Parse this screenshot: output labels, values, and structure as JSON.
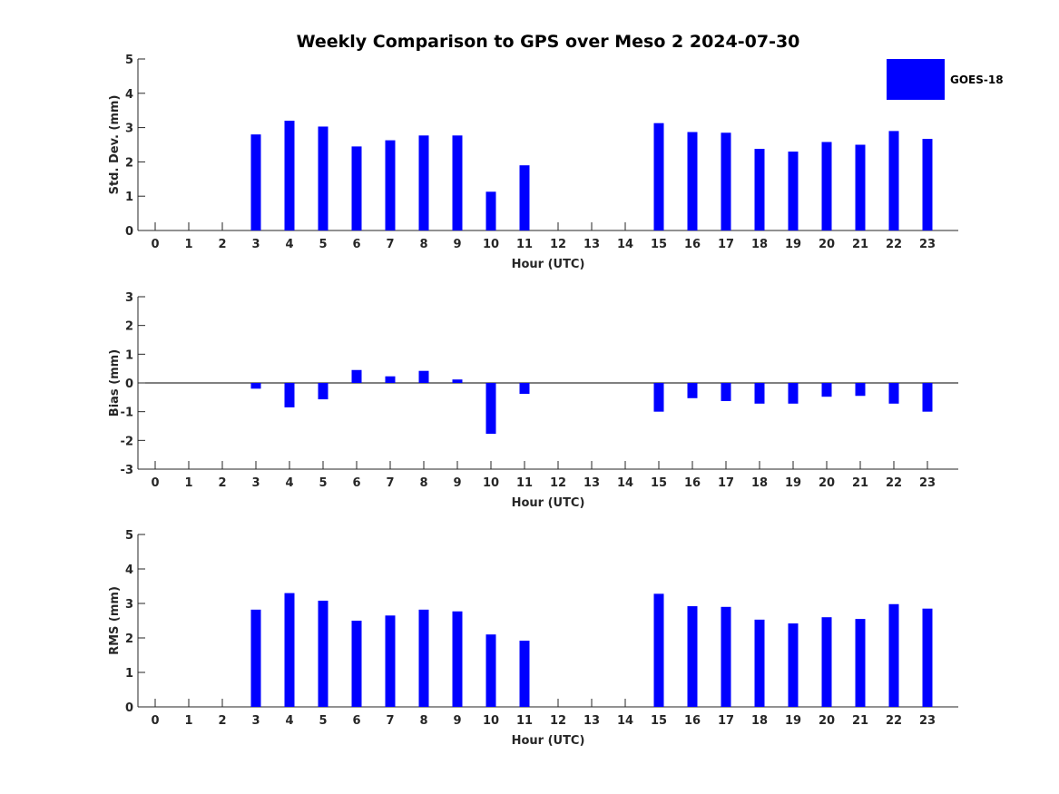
{
  "colors": {
    "bar": "#0000ff",
    "axis": "#262626",
    "background": "#ffffff"
  },
  "legend": {
    "label": "GOES-18",
    "location": "top-right"
  },
  "chart_data": {
    "title": "Weekly Comparison to GPS over Meso 2 2024-07-30",
    "panels": [
      {
        "type": "bar",
        "xlabel": "Hour (UTC)",
        "ylabel": "Std. Dev. (mm)",
        "ylim": [
          0,
          5
        ],
        "yticks": [
          0,
          1,
          2,
          3,
          4,
          5
        ],
        "categories": [
          "0",
          "1",
          "2",
          "3",
          "4",
          "5",
          "6",
          "7",
          "8",
          "9",
          "10",
          "11",
          "12",
          "13",
          "14",
          "15",
          "16",
          "17",
          "18",
          "19",
          "20",
          "21",
          "22",
          "23"
        ],
        "series": [
          {
            "name": "GOES-18",
            "values": [
              0,
              0,
              0,
              2.8,
              3.2,
              3.03,
              2.45,
              2.63,
              2.77,
              2.77,
              1.13,
              1.9,
              0,
              0,
              0,
              3.13,
              2.87,
              2.85,
              2.38,
              2.3,
              2.58,
              2.5,
              2.9,
              2.67
            ]
          }
        ]
      },
      {
        "type": "bar",
        "xlabel": "Hour (UTC)",
        "ylabel": "Bias (mm)",
        "ylim": [
          -3,
          3
        ],
        "yticks": [
          -3,
          -2,
          -1,
          0,
          1,
          2,
          3
        ],
        "categories": [
          "0",
          "1",
          "2",
          "3",
          "4",
          "5",
          "6",
          "7",
          "8",
          "9",
          "10",
          "11",
          "12",
          "13",
          "14",
          "15",
          "16",
          "17",
          "18",
          "19",
          "20",
          "21",
          "22",
          "23"
        ],
        "series": [
          {
            "name": "GOES-18",
            "values": [
              0,
              0,
              0,
              -0.2,
              -0.85,
              -0.57,
              0.45,
              0.23,
              0.42,
              0.12,
              -1.77,
              -0.38,
              0,
              0,
              0,
              -1.0,
              -0.53,
              -0.63,
              -0.72,
              -0.72,
              -0.48,
              -0.45,
              -0.72,
              -1.0
            ]
          }
        ]
      },
      {
        "type": "bar",
        "xlabel": "Hour (UTC)",
        "ylabel": "RMS (mm)",
        "ylim": [
          0,
          5
        ],
        "yticks": [
          0,
          1,
          2,
          3,
          4,
          5
        ],
        "categories": [
          "0",
          "1",
          "2",
          "3",
          "4",
          "5",
          "6",
          "7",
          "8",
          "9",
          "10",
          "11",
          "12",
          "13",
          "14",
          "15",
          "16",
          "17",
          "18",
          "19",
          "20",
          "21",
          "22",
          "23"
        ],
        "series": [
          {
            "name": "GOES-18",
            "values": [
              0,
              0,
              0,
              2.82,
              3.3,
              3.08,
              2.5,
              2.65,
              2.82,
              2.77,
              2.1,
              1.92,
              0,
              0,
              0,
              3.28,
              2.92,
              2.9,
              2.53,
              2.42,
              2.6,
              2.55,
              2.98,
              2.85
            ]
          }
        ]
      }
    ]
  }
}
